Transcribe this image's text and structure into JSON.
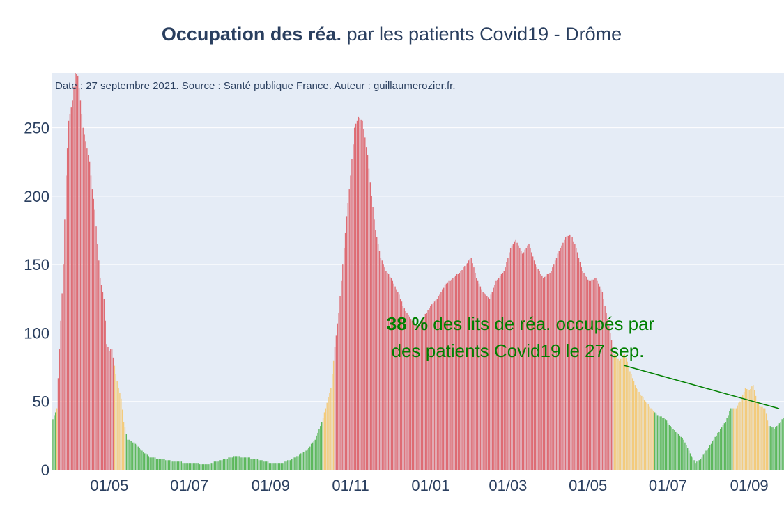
{
  "title": {
    "bold": "Occupation des réa.",
    "rest": " par les patients Covid19 - Drôme"
  },
  "source_note": "Date : 27 septembre 2021. Source : Santé publique France. Auteur : guillaumerozier.fr.",
  "annotation": {
    "bold": "38  %",
    "line1_rest": " des lits de réa. occupés par",
    "line2": "des patients Covid19 le 27 sep."
  },
  "colors": {
    "plot_bg": "#e5ecf6",
    "grid": "#ffffff",
    "text": "#2a3f5f",
    "red": "#de6b73",
    "orange": "#f3cb7c",
    "green": "#5cb85c",
    "annotation": "#008000"
  },
  "chart_data": {
    "type": "bar",
    "xlim": [
      "2020-03-19",
      "2021-09-27"
    ],
    "ylim": [
      0,
      290
    ],
    "yticks": [
      0,
      50,
      100,
      150,
      200,
      250
    ],
    "xticks": [
      {
        "date": "2020-05-01",
        "label": "01/05"
      },
      {
        "date": "2020-07-01",
        "label": "01/07"
      },
      {
        "date": "2020-09-01",
        "label": "01/09"
      },
      {
        "date": "2020-11-01",
        "label": "01/11"
      },
      {
        "date": "2021-01-01",
        "label": "01/01"
      },
      {
        "date": "2021-03-01",
        "label": "01/03"
      },
      {
        "date": "2021-05-01",
        "label": "01/05"
      },
      {
        "date": "2021-07-01",
        "label": "01/07"
      },
      {
        "date": "2021-09-01",
        "label": "01/09"
      }
    ],
    "series": [
      {
        "name": "",
        "value_points": [
          [
            "2020-03-19",
            37
          ],
          [
            "2020-03-22",
            45
          ],
          [
            "2020-03-24",
            88
          ],
          [
            "2020-03-27",
            150
          ],
          [
            "2020-03-29",
            215
          ],
          [
            "2020-03-31",
            255
          ],
          [
            "2020-04-03",
            270
          ],
          [
            "2020-04-05",
            290
          ],
          [
            "2020-04-07",
            288
          ],
          [
            "2020-04-09",
            270
          ],
          [
            "2020-04-11",
            250
          ],
          [
            "2020-04-14",
            235
          ],
          [
            "2020-04-16",
            225
          ],
          [
            "2020-04-18",
            205
          ],
          [
            "2020-04-20",
            190
          ],
          [
            "2020-04-22",
            165
          ],
          [
            "2020-04-24",
            140
          ],
          [
            "2020-04-27",
            125
          ],
          [
            "2020-04-29",
            92
          ],
          [
            "2020-05-01",
            87
          ],
          [
            "2020-05-03",
            88
          ],
          [
            "2020-05-06",
            70
          ],
          [
            "2020-05-08",
            60
          ],
          [
            "2020-05-10",
            52
          ],
          [
            "2020-05-12",
            35
          ],
          [
            "2020-05-15",
            22
          ],
          [
            "2020-05-20",
            20
          ],
          [
            "2020-05-25",
            15
          ],
          [
            "2020-06-01",
            9
          ],
          [
            "2020-06-10",
            8
          ],
          [
            "2020-06-20",
            6
          ],
          [
            "2020-07-01",
            5
          ],
          [
            "2020-07-15",
            4
          ],
          [
            "2020-07-25",
            7
          ],
          [
            "2020-08-05",
            10
          ],
          [
            "2020-08-20",
            8
          ],
          [
            "2020-09-01",
            5
          ],
          [
            "2020-09-10",
            5
          ],
          [
            "2020-09-20",
            9
          ],
          [
            "2020-09-28",
            14
          ],
          [
            "2020-10-05",
            22
          ],
          [
            "2020-10-10",
            35
          ],
          [
            "2020-10-13",
            45
          ],
          [
            "2020-10-17",
            60
          ],
          [
            "2020-10-20",
            90
          ],
          [
            "2020-10-23",
            115
          ],
          [
            "2020-10-26",
            150
          ],
          [
            "2020-10-29",
            185
          ],
          [
            "2020-11-01",
            215
          ],
          [
            "2020-11-04",
            250
          ],
          [
            "2020-11-07",
            258
          ],
          [
            "2020-11-10",
            255
          ],
          [
            "2020-11-14",
            230
          ],
          [
            "2020-11-17",
            200
          ],
          [
            "2020-11-20",
            175
          ],
          [
            "2020-11-24",
            155
          ],
          [
            "2020-11-28",
            145
          ],
          [
            "2020-12-02",
            140
          ],
          [
            "2020-12-07",
            130
          ],
          [
            "2020-12-12",
            118
          ],
          [
            "2020-12-17",
            110
          ],
          [
            "2020-12-22",
            105
          ],
          [
            "2020-12-27",
            112
          ],
          [
            "2021-01-01",
            120
          ],
          [
            "2021-01-06",
            125
          ],
          [
            "2021-01-12",
            135
          ],
          [
            "2021-01-18",
            140
          ],
          [
            "2021-01-24",
            145
          ],
          [
            "2021-02-01",
            155
          ],
          [
            "2021-02-05",
            140
          ],
          [
            "2021-02-10",
            130
          ],
          [
            "2021-02-15",
            125
          ],
          [
            "2021-02-20",
            138
          ],
          [
            "2021-02-26",
            145
          ],
          [
            "2021-03-03",
            162
          ],
          [
            "2021-03-07",
            168
          ],
          [
            "2021-03-12",
            158
          ],
          [
            "2021-03-17",
            165
          ],
          [
            "2021-03-22",
            150
          ],
          [
            "2021-03-28",
            140
          ],
          [
            "2021-04-03",
            145
          ],
          [
            "2021-04-09",
            160
          ],
          [
            "2021-04-14",
            170
          ],
          [
            "2021-04-18",
            172
          ],
          [
            "2021-04-22",
            162
          ],
          [
            "2021-04-27",
            145
          ],
          [
            "2021-05-02",
            138
          ],
          [
            "2021-05-07",
            140
          ],
          [
            "2021-05-12",
            130
          ],
          [
            "2021-05-17",
            105
          ],
          [
            "2021-05-21",
            85
          ],
          [
            "2021-05-25",
            80
          ],
          [
            "2021-05-29",
            85
          ],
          [
            "2021-06-02",
            72
          ],
          [
            "2021-06-06",
            62
          ],
          [
            "2021-06-10",
            55
          ],
          [
            "2021-06-14",
            50
          ],
          [
            "2021-06-18",
            45
          ],
          [
            "2021-06-23",
            40
          ],
          [
            "2021-06-28",
            38
          ],
          [
            "2021-07-03",
            32
          ],
          [
            "2021-07-08",
            27
          ],
          [
            "2021-07-13",
            22
          ],
          [
            "2021-07-18",
            12
          ],
          [
            "2021-07-22",
            5
          ],
          [
            "2021-07-26",
            8
          ],
          [
            "2021-07-31",
            15
          ],
          [
            "2021-08-05",
            22
          ],
          [
            "2021-08-10",
            30
          ],
          [
            "2021-08-14",
            35
          ],
          [
            "2021-08-18",
            45
          ],
          [
            "2021-08-22",
            45
          ],
          [
            "2021-08-26",
            52
          ],
          [
            "2021-08-29",
            60
          ],
          [
            "2021-09-01",
            58
          ],
          [
            "2021-09-04",
            62
          ],
          [
            "2021-09-07",
            50
          ],
          [
            "2021-09-10",
            46
          ],
          [
            "2021-09-13",
            45
          ],
          [
            "2021-09-16",
            32
          ],
          [
            "2021-09-20",
            30
          ],
          [
            "2021-09-24",
            34
          ],
          [
            "2021-09-27",
            38
          ]
        ],
        "color_segments": [
          {
            "from": "2020-03-19",
            "to": "2020-03-21",
            "color": "green"
          },
          {
            "from": "2020-03-22",
            "to": "2020-03-22",
            "color": "orange"
          },
          {
            "from": "2020-03-23",
            "to": "2020-05-04",
            "color": "red"
          },
          {
            "from": "2020-05-05",
            "to": "2020-05-13",
            "color": "orange"
          },
          {
            "from": "2020-05-14",
            "to": "2020-10-10",
            "color": "green"
          },
          {
            "from": "2020-10-11",
            "to": "2020-10-19",
            "color": "orange"
          },
          {
            "from": "2020-10-20",
            "to": "2021-05-20",
            "color": "red"
          },
          {
            "from": "2021-05-21",
            "to": "2021-06-20",
            "color": "orange"
          },
          {
            "from": "2021-06-21",
            "to": "2021-08-19",
            "color": "green"
          },
          {
            "from": "2021-08-20",
            "to": "2021-09-16",
            "color": "orange"
          },
          {
            "from": "2021-09-17",
            "to": "2021-09-27",
            "color": "green"
          }
        ]
      }
    ]
  }
}
